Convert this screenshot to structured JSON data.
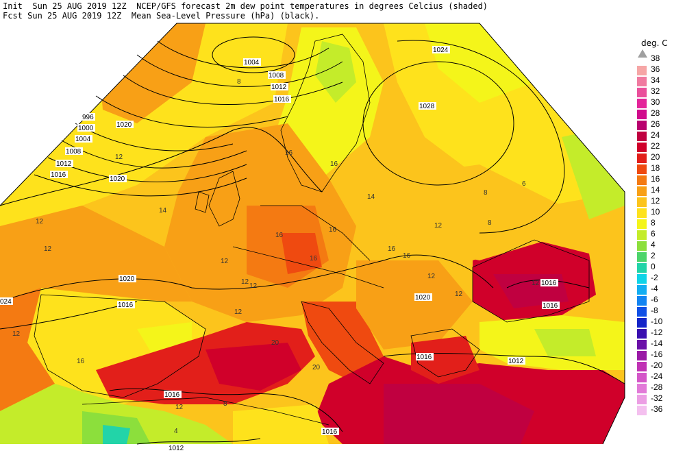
{
  "header": {
    "line1": "Init  Sun 25 AUG 2019 12Z  NCEP/GFS forecast 2m dew point temperatures in degrees Celcius (shaded)",
    "line2": "Fcst Sun 25 AUG 2019 12Z  Mean Sea-Level Pressure (hPa) (black)."
  },
  "legend": {
    "title": "deg. C",
    "entries": [
      {
        "label": "38",
        "color": "#a0a0a0"
      },
      {
        "label": "36",
        "color": "#f6a6a6"
      },
      {
        "label": "34",
        "color": "#f07aa0"
      },
      {
        "label": "32",
        "color": "#ea4f9b"
      },
      {
        "label": "30",
        "color": "#e4249a"
      },
      {
        "label": "28",
        "color": "#d00c8c"
      },
      {
        "label": "26",
        "color": "#b8006e"
      },
      {
        "label": "24",
        "color": "#c00040"
      },
      {
        "label": "22",
        "color": "#d0002a"
      },
      {
        "label": "20",
        "color": "#e21f1a"
      },
      {
        "label": "18",
        "color": "#ef4a10"
      },
      {
        "label": "16",
        "color": "#f47a12"
      },
      {
        "label": "14",
        "color": "#f8a016"
      },
      {
        "label": "12",
        "color": "#fcc41c"
      },
      {
        "label": "10",
        "color": "#fee21c"
      },
      {
        "label": "8",
        "color": "#f4f51a"
      },
      {
        "label": "6",
        "color": "#c4ec2a"
      },
      {
        "label": "4",
        "color": "#8cdf3c"
      },
      {
        "label": "2",
        "color": "#4cd46a"
      },
      {
        "label": "0",
        "color": "#22d4a8"
      },
      {
        "label": "-2",
        "color": "#10d4e8"
      },
      {
        "label": "-4",
        "color": "#12aef2"
      },
      {
        "label": "-6",
        "color": "#1284f2"
      },
      {
        "label": "-8",
        "color": "#1050e6"
      },
      {
        "label": "-10",
        "color": "#1424c8"
      },
      {
        "label": "-12",
        "color": "#3a10b0"
      },
      {
        "label": "-14",
        "color": "#6a10a8"
      },
      {
        "label": "-16",
        "color": "#9a1aa6"
      },
      {
        "label": "-20",
        "color": "#c032b4"
      },
      {
        "label": "-24",
        "color": "#d456c8"
      },
      {
        "label": "-28",
        "color": "#e27ad8"
      },
      {
        "label": "-32",
        "color": "#ec9ee4"
      },
      {
        "label": "-36",
        "color": "#f4c0ef"
      }
    ]
  },
  "map": {
    "isobar_labels": [
      "1004",
      "1008",
      "1012",
      "1016",
      "1020",
      "996",
      "1000",
      "1004",
      "1008",
      "1012",
      "1016",
      "1020",
      "1024",
      "1028",
      "1020",
      "024",
      "1016",
      "1016",
      "1016",
      "1020",
      "1012",
      "1016",
      "1016",
      "1012",
      "1016"
    ],
    "dewpoint_labels": [
      "12",
      "12",
      "12",
      "14",
      "16",
      "16",
      "12",
      "12",
      "12",
      "16",
      "16",
      "20",
      "20",
      "12",
      "8",
      "12",
      "12",
      "8",
      "12",
      "16",
      "12",
      "16",
      "12",
      "8",
      "6",
      "16",
      "16",
      "14",
      "12",
      "8",
      "4"
    ]
  }
}
